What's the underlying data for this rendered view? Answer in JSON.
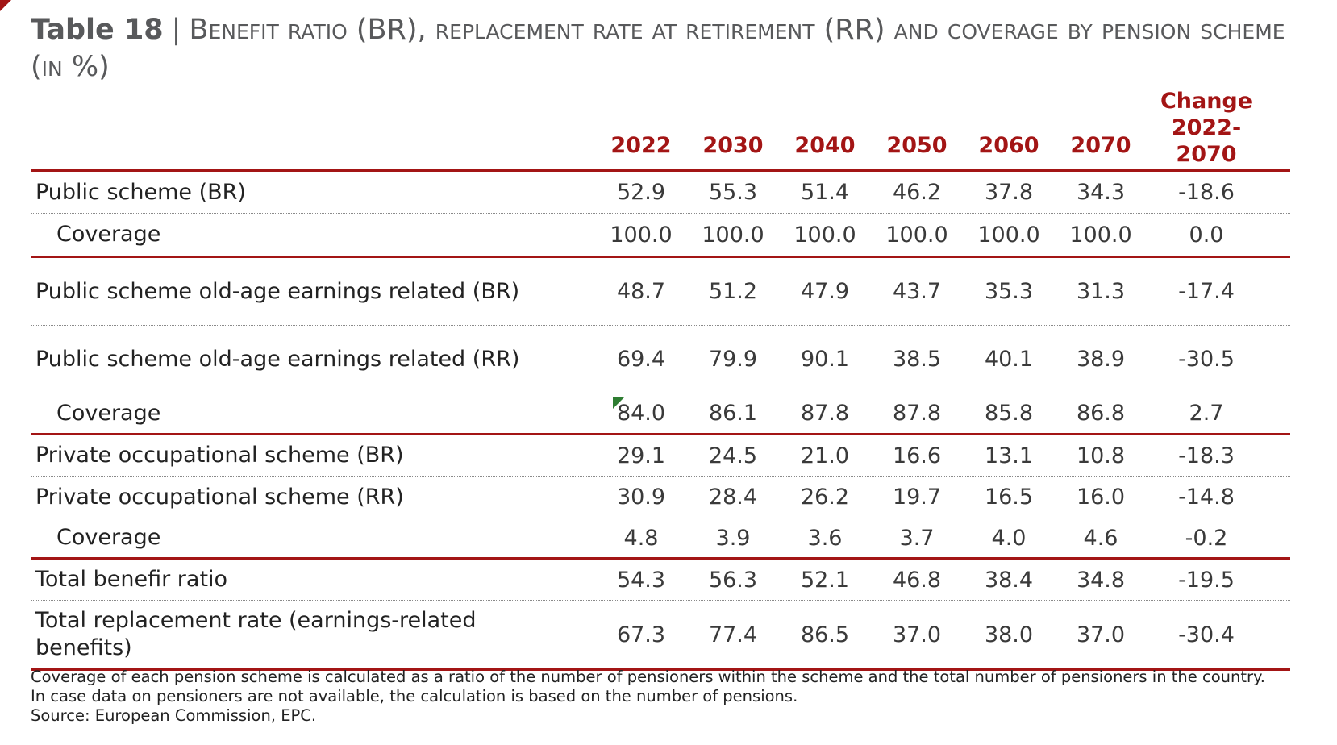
{
  "title": {
    "number": "Table 18",
    "separator": "|",
    "text": "Benefit ratio (BR), replacement rate at retirement (RR) and coverage by pension scheme (in %)"
  },
  "table": {
    "headers": [
      "2022",
      "2030",
      "2040",
      "2050",
      "2060",
      "2070"
    ],
    "change_header_line1": "Change",
    "change_header_line2": "2022-2070",
    "rows": [
      {
        "label": "Public scheme (BR)",
        "values": [
          "52.9",
          "55.3",
          "51.4",
          "46.2",
          "37.8",
          "34.3"
        ],
        "change": "-18.6"
      },
      {
        "label": "Coverage",
        "values": [
          "100.0",
          "100.0",
          "100.0",
          "100.0",
          "100.0",
          "100.0"
        ],
        "change": "0.0"
      },
      {
        "label": "Public scheme old-age earnings related (BR)",
        "values": [
          "48.7",
          "51.2",
          "47.9",
          "43.7",
          "35.3",
          "31.3"
        ],
        "change": "-17.4"
      },
      {
        "label": "Public scheme old-age earnings related (RR)",
        "values": [
          "69.4",
          "79.9",
          "90.1",
          "38.5",
          "40.1",
          "38.9"
        ],
        "change": "-30.5"
      },
      {
        "label": "Coverage",
        "values": [
          "84.0",
          "86.1",
          "87.8",
          "87.8",
          "85.8",
          "86.8"
        ],
        "change": "2.7"
      },
      {
        "label": "Private occupational scheme (BR)",
        "values": [
          "29.1",
          "24.5",
          "21.0",
          "16.6",
          "13.1",
          "10.8"
        ],
        "change": "-18.3"
      },
      {
        "label": "Private occupational scheme (RR)",
        "values": [
          "30.9",
          "28.4",
          "26.2",
          "19.7",
          "16.5",
          "16.0"
        ],
        "change": "-14.8"
      },
      {
        "label": "Coverage",
        "values": [
          "4.8",
          "3.9",
          "3.6",
          "3.7",
          "4.0",
          "4.6"
        ],
        "change": "-0.2"
      },
      {
        "label": "Total benefir ratio",
        "values": [
          "54.3",
          "56.3",
          "52.1",
          "46.8",
          "38.4",
          "34.8"
        ],
        "change": "-19.5"
      },
      {
        "label": "Total replacement rate (earnings-related benefits)",
        "values": [
          "67.3",
          "77.4",
          "86.5",
          "37.0",
          "38.0",
          "37.0"
        ],
        "change": "-30.4"
      }
    ]
  },
  "notes": {
    "line1": "Coverage of each pension scheme is calculated as a ratio of the number of pensioners within the scheme and the total number of pensioners in the country.",
    "line2": "In case data on pensioners are not available, the calculation is based on the number of pensions.",
    "source": "Source: European Commission, EPC."
  },
  "colors": {
    "accent": "#a31515",
    "title_text": "#58595b",
    "body_text": "#222222",
    "flag": "#2e7d32"
  }
}
